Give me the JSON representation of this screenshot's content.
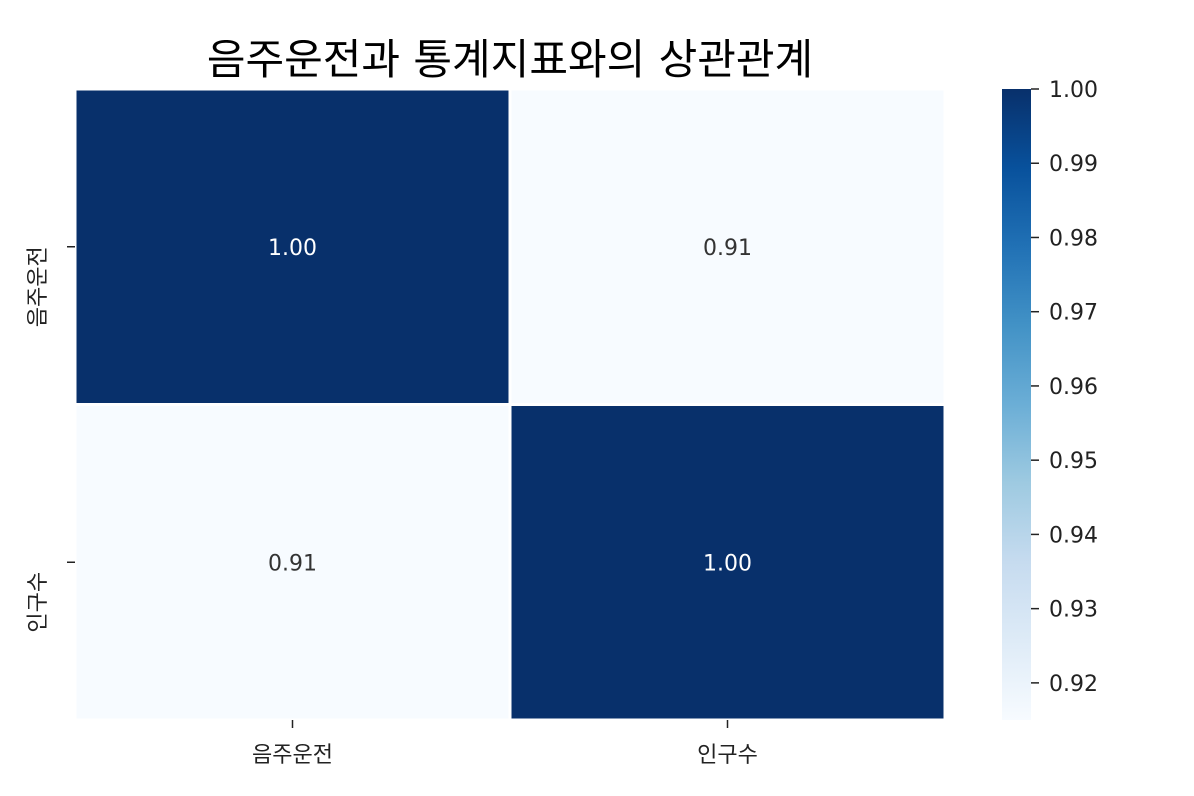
{
  "chart_data": {
    "type": "heatmap",
    "title": "음주운전과 통계지표와의 상관관계",
    "x_labels": [
      "음주운전",
      "인구수"
    ],
    "y_labels": [
      "음주운전",
      "인구수"
    ],
    "values": [
      [
        1.0,
        0.91
      ],
      [
        0.91,
        1.0
      ]
    ],
    "annotations": [
      [
        "1.00",
        "0.91"
      ],
      [
        "0.91",
        "1.00"
      ]
    ],
    "colormap": "Blues",
    "color_min": "#f7fbff",
    "color_max": "#08306b",
    "annotation_color_dark": "#ffffff",
    "annotation_color_light": "#333333",
    "colorbar": {
      "vmin": 0.915,
      "vmax": 1.0,
      "ticks": [
        0.92,
        0.93,
        0.94,
        0.95,
        0.96,
        0.97,
        0.98,
        0.99,
        1.0
      ],
      "tick_labels": [
        "0.92",
        "0.93",
        "0.94",
        "0.95",
        "0.96",
        "0.97",
        "0.98",
        "0.99",
        "1.00"
      ]
    }
  }
}
